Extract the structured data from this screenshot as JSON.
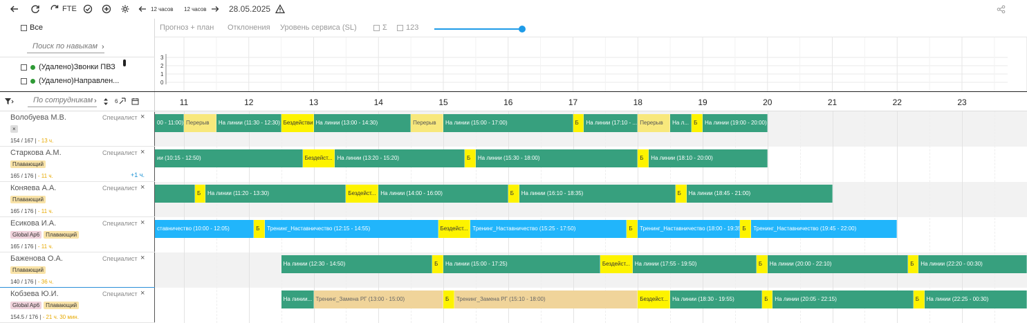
{
  "toolbar": {
    "fte_label": "FTE",
    "step_left_label": "12 часов",
    "step_right_label": "12 часов",
    "date": "28.05.2025"
  },
  "skills": {
    "select_all_label": "Все",
    "search_placeholder": "Поиск по навыкам",
    "items": [
      {
        "label": "(Удалено)Звонки ПВЗ"
      },
      {
        "label": "(Удалено)Направлен..."
      }
    ]
  },
  "views": {
    "forecast_plan": "Прогноз + план",
    "deviations": "Отклонения",
    "service_level": "Уровень сервиса (SL)",
    "sum_label": "Σ",
    "num_label": "123",
    "slider_value": 1.0
  },
  "mini_chart": {
    "y_ticks": [
      "3",
      "2",
      "1",
      "0"
    ]
  },
  "timeline": {
    "employee_search_placeholder": "По сотрудникам",
    "badge": "6",
    "hours": [
      "11",
      "12",
      "13",
      "14",
      "15",
      "16",
      "17",
      "18",
      "19",
      "20",
      "21",
      "22",
      "23"
    ]
  },
  "employees": [
    {
      "name": "Волобуева М.В.",
      "role": "Специалист",
      "tags": [
        {
          "text": "×",
          "kind": "grey"
        }
      ],
      "hours_plan": "154 / 167",
      "hours_over": "13 ч.",
      "extra": "",
      "segments": [
        {
          "type": "green",
          "label": "00 - 11:00)",
          "start": 10.5,
          "end": 11.0
        },
        {
          "type": "lyellow",
          "label": "Перерыв",
          "start": 11.0,
          "end": 11.5
        },
        {
          "type": "green",
          "label": "На линии (11:30 - 12:30)",
          "start": 11.5,
          "end": 12.5
        },
        {
          "type": "yellow",
          "label": "Бездействие",
          "start": 12.5,
          "end": 13.0
        },
        {
          "type": "green",
          "label": "На линии (13:00 - 14:30)",
          "start": 13.0,
          "end": 14.5
        },
        {
          "type": "lyellow",
          "label": "Перерыв",
          "start": 14.5,
          "end": 15.0
        },
        {
          "type": "green",
          "label": "На линии (15:00 - 17:00)",
          "start": 15.0,
          "end": 17.0
        },
        {
          "type": "yellow",
          "label": "Б",
          "start": 17.0,
          "end": 17.17
        },
        {
          "type": "green",
          "label": "На линии (17:10 - ...",
          "start": 17.17,
          "end": 18.0
        },
        {
          "type": "lyellow",
          "label": "Перерыв",
          "start": 18.0,
          "end": 18.5
        },
        {
          "type": "green",
          "label": "На л...",
          "start": 18.5,
          "end": 18.83
        },
        {
          "type": "yellow",
          "label": "Б",
          "start": 18.83,
          "end": 19.0
        },
        {
          "type": "green",
          "label": "На линии (19:00 - 20:00)",
          "start": 19.0,
          "end": 20.0
        }
      ]
    },
    {
      "name": "Старкова А.М.",
      "role": "Специалист",
      "tags": [
        {
          "text": "Плавающий",
          "kind": "yellow"
        }
      ],
      "hours_plan": "165 / 176",
      "hours_over": "11 ч.",
      "extra": "+1 ч.",
      "segments": [
        {
          "type": "green",
          "label": "ии (10:15 - 12:50)",
          "start": 10.5,
          "end": 12.83
        },
        {
          "type": "yellow",
          "label": "Бездейст...",
          "start": 12.83,
          "end": 13.33
        },
        {
          "type": "green",
          "label": "На линии (13:20 - 15:20)",
          "start": 13.33,
          "end": 15.33
        },
        {
          "type": "yellow",
          "label": "Б",
          "start": 15.33,
          "end": 15.5
        },
        {
          "type": "green",
          "label": "На линии (15:30 - 18:00)",
          "start": 15.5,
          "end": 18.0
        },
        {
          "type": "yellow",
          "label": "Б",
          "start": 18.0,
          "end": 18.17
        },
        {
          "type": "green",
          "label": "На линии (18:10 - 20:00)",
          "start": 18.17,
          "end": 20.0
        }
      ]
    },
    {
      "name": "Коняева А.А.",
      "role": "Специалист",
      "tags": [
        {
          "text": "Плавающий",
          "kind": "yellow"
        }
      ],
      "hours_plan": "165 / 176",
      "hours_over": "11 ч.",
      "extra": "",
      "segments": [
        {
          "type": "green",
          "label": "",
          "start": 10.5,
          "end": 11.17
        },
        {
          "type": "yellow",
          "label": "Б",
          "start": 11.17,
          "end": 11.33
        },
        {
          "type": "green",
          "label": "На линии (11:20 - 13:30)",
          "start": 11.33,
          "end": 13.5
        },
        {
          "type": "yellow",
          "label": "Бездейст...",
          "start": 13.5,
          "end": 14.0
        },
        {
          "type": "green",
          "label": "На линии (14:00 - 16:00)",
          "start": 14.0,
          "end": 16.0
        },
        {
          "type": "yellow",
          "label": "Б",
          "start": 16.0,
          "end": 16.17
        },
        {
          "type": "green",
          "label": "На линии (16:10 - 18:35)",
          "start": 16.17,
          "end": 18.58
        },
        {
          "type": "yellow",
          "label": "Б",
          "start": 18.58,
          "end": 18.75
        },
        {
          "type": "green",
          "label": "На линии (18:45 - 21:00)",
          "start": 18.75,
          "end": 21.0
        }
      ]
    },
    {
      "name": "Есикова И.А.",
      "role": "Специалист",
      "tags": [
        {
          "text": "Global Ap6",
          "kind": "pink"
        },
        {
          "text": "Плавающий",
          "kind": "yellow"
        }
      ],
      "hours_plan": "165 / 176",
      "hours_over": "11 ч.",
      "extra": "",
      "segments": [
        {
          "type": "blue",
          "label": "ставничество (10:00 - 12:05)",
          "start": 10.5,
          "end": 12.08
        },
        {
          "type": "yellow",
          "label": "Б",
          "start": 12.08,
          "end": 12.25
        },
        {
          "type": "blue",
          "label": "Тренинг_Наставничество (12:15 - 14:55)",
          "start": 12.25,
          "end": 14.92
        },
        {
          "type": "yellow",
          "label": "Бездейст...",
          "start": 14.92,
          "end": 15.42
        },
        {
          "type": "blue",
          "label": "Тренинг_Наставничество (15:25 - 17:50)",
          "start": 15.42,
          "end": 17.83
        },
        {
          "type": "yellow",
          "label": "Б",
          "start": 17.83,
          "end": 18.0
        },
        {
          "type": "blue",
          "label": "Тренинг_Наставничество (18:00 - 19:35)",
          "start": 18.0,
          "end": 19.58
        },
        {
          "type": "yellow",
          "label": "Б",
          "start": 19.58,
          "end": 19.75
        },
        {
          "type": "blue",
          "label": "Тренинг_Наставничество (19:45 - 22:00)",
          "start": 19.75,
          "end": 22.0
        }
      ]
    },
    {
      "name": "Баженова О.А.",
      "role": "Специалист",
      "tags": [
        {
          "text": "Плавающий",
          "kind": "yellow"
        }
      ],
      "hours_plan": "140 / 176",
      "hours_over": "36 ч.",
      "extra": "",
      "segments": [
        {
          "type": "green",
          "label": "На линии (12:30 - 14:50)",
          "start": 12.5,
          "end": 14.83
        },
        {
          "type": "yellow",
          "label": "Б",
          "start": 14.83,
          "end": 15.0
        },
        {
          "type": "green",
          "label": "На линии (15:00 - 17:25)",
          "start": 15.0,
          "end": 17.42
        },
        {
          "type": "yellow",
          "label": "Бездейст...",
          "start": 17.42,
          "end": 17.92
        },
        {
          "type": "green",
          "label": "На линии (17:55 - 19:50)",
          "start": 17.92,
          "end": 19.83
        },
        {
          "type": "yellow",
          "label": "Б",
          "start": 19.83,
          "end": 20.0
        },
        {
          "type": "green",
          "label": "На линии (20:00 - 22:10)",
          "start": 20.0,
          "end": 22.17
        },
        {
          "type": "yellow",
          "label": "Б",
          "start": 22.17,
          "end": 22.33
        },
        {
          "type": "green",
          "label": "На линии (22:20 - 00:30)",
          "start": 22.33,
          "end": 24.0
        }
      ]
    },
    {
      "name": "Кобзева Ю.И.",
      "role": "Специалист",
      "tags": [
        {
          "text": "Global Ap6",
          "kind": "pink"
        },
        {
          "text": "Плавающий",
          "kind": "yellow"
        }
      ],
      "hours_plan": "154.5 / 176",
      "hours_over": "21 ч. 30 мин.",
      "extra": "",
      "segments": [
        {
          "type": "green",
          "label": "На линии...",
          "start": 12.5,
          "end": 13.0
        },
        {
          "type": "tan",
          "label": "Тренинг_Замена РГ (13:00 - 15:00)",
          "start": 13.0,
          "end": 15.0
        },
        {
          "type": "yellow",
          "label": "Б",
          "start": 15.0,
          "end": 15.17
        },
        {
          "type": "tan",
          "label": "Тренинг_Замена РГ (15:10 - 18:00)",
          "start": 15.17,
          "end": 18.0
        },
        {
          "type": "yellow",
          "label": "Бездейст...",
          "start": 18.0,
          "end": 18.5
        },
        {
          "type": "green",
          "label": "На линии (18:30 - 19:55)",
          "start": 18.5,
          "end": 19.92
        },
        {
          "type": "yellow",
          "label": "Б",
          "start": 19.92,
          "end": 20.08
        },
        {
          "type": "green",
          "label": "На линии (20:05 - 22:15)",
          "start": 20.08,
          "end": 22.25
        },
        {
          "type": "yellow",
          "label": "Б",
          "start": 22.25,
          "end": 22.42
        },
        {
          "type": "green",
          "label": "На линии (22:25 - 00:30)",
          "start": 22.42,
          "end": 24.0
        }
      ]
    }
  ]
}
